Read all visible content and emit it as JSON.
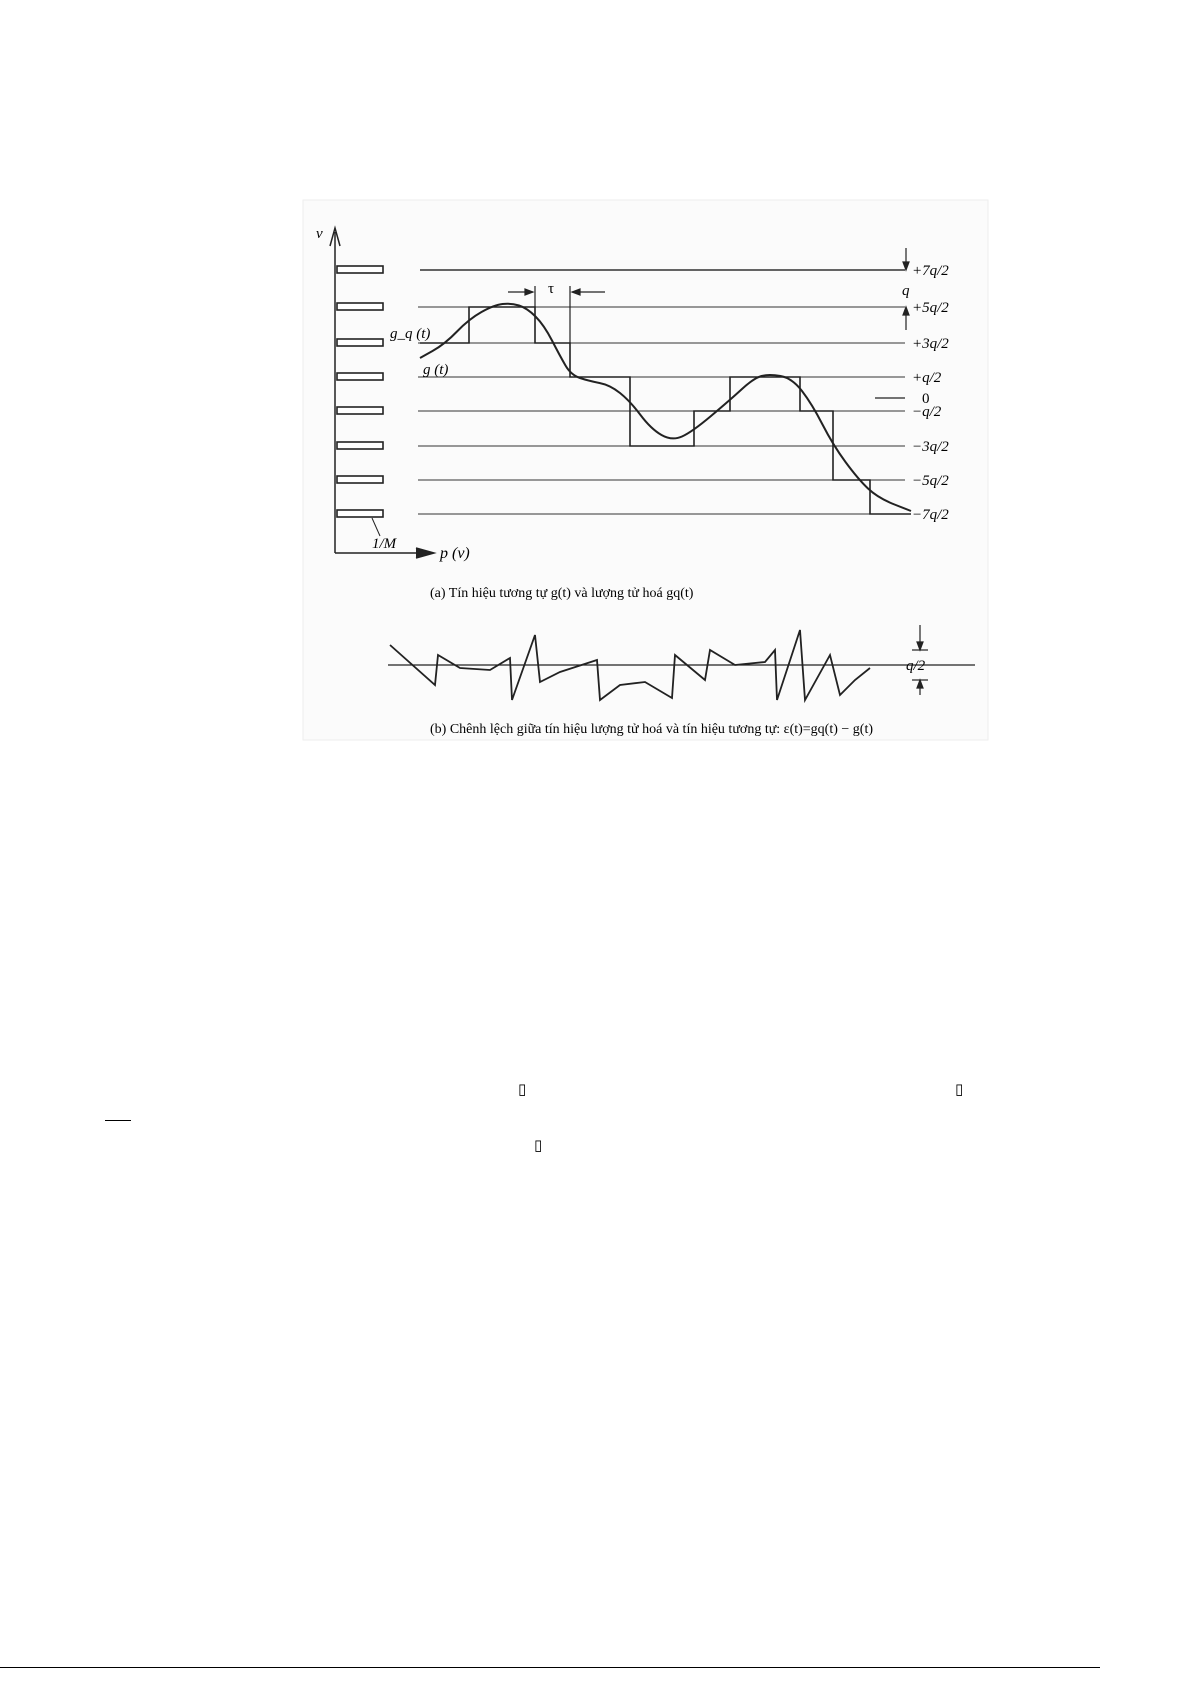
{
  "figure": {
    "axis_v_label": "v",
    "axis_p_label": "p (v)",
    "density_label": "1/M",
    "gq_label": "g_q (t)",
    "g_label": "g (t)",
    "tau_label": "τ",
    "q_label": "q",
    "zero_label": "0",
    "levels": [
      "+7q/2",
      "+5q/2",
      "+3q/2",
      "+q/2",
      "−q/2",
      "−3q/2",
      "−5q/2",
      "−7q/2"
    ],
    "caption_a": "(a) Tín hiệu tương tự g(t) và lượng tử hoá gq(t)",
    "caption_b": "(b) Chênh lệch giữa tín hiệu lượng tử hoá và tín hiệu tương tự: ε(t)=gq(t) − g(t)",
    "half_q_label": "q/2"
  },
  "page": {
    "missing_glyph": "▯"
  }
}
